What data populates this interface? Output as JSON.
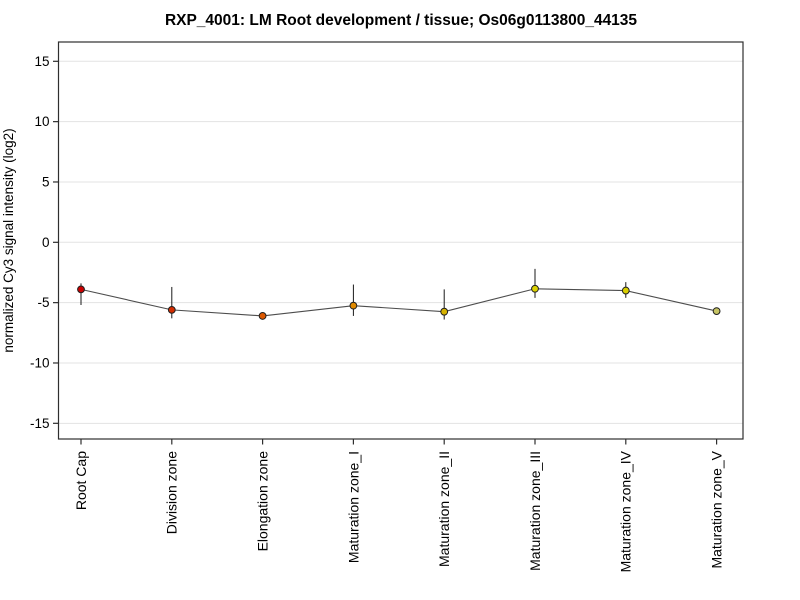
{
  "chart_data": {
    "type": "line",
    "title": "RXP_4001: LM Root development / tissue; Os06g0113800_44135",
    "xlabel": "",
    "ylabel": "normalized Cy3 signal intensity (log2)",
    "ylim": [
      -16.3,
      16.6
    ],
    "yticks": [
      15,
      10,
      5,
      0,
      -5,
      -10,
      -15
    ],
    "grid": "horizontal",
    "legend": "none",
    "categories": [
      "Root Cap",
      "Division zone",
      "Elongation zone",
      "Maturation zone_I",
      "Maturation zone_II",
      "Maturation zone_III",
      "Maturation zone_IV",
      "Maturation zone_V"
    ],
    "series": [
      {
        "values": [
          -3.9,
          -5.6,
          -6.1,
          -5.25,
          -5.75,
          -3.85,
          -4.0,
          -5.7
        ],
        "error_low": [
          -5.2,
          -6.3,
          -6.1,
          -6.1,
          -6.4,
          -4.6,
          -4.6,
          -5.7
        ],
        "error_high": [
          -3.4,
          -3.7,
          -6.1,
          -3.5,
          -3.9,
          -2.2,
          -3.3,
          -5.7
        ],
        "point_colors": [
          "#cc0000",
          "#d42c00",
          "#dc5800",
          "#e08a00",
          "#d6b200",
          "#dcd200",
          "#d8ce00",
          "#c6c464"
        ]
      }
    ],
    "line_color": "#4d4d4d",
    "error_bar_color": "#1a1a1a",
    "point_border_color": "#1f1f1f",
    "grid_color": "#e3e3e3",
    "axis_color": "#2e2e2e",
    "box_color": "#2e2e2e",
    "background_color": "#ffffff"
  }
}
